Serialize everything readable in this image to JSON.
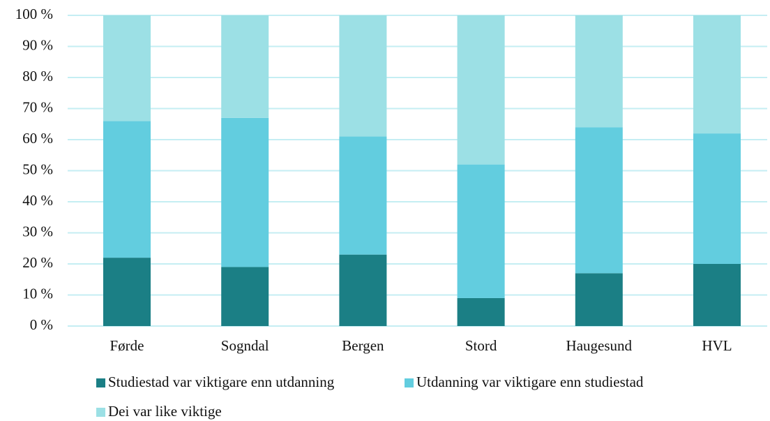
{
  "chart_data": {
    "type": "stacked_bar",
    "categories": [
      "Førde",
      "Sogndal",
      "Bergen",
      "Stord",
      "Haugesund",
      "HVL"
    ],
    "series": [
      {
        "name": "Studiestad var viktigare enn utdanning",
        "color": "#1b7f85",
        "values": [
          22,
          19,
          23,
          9,
          17,
          20
        ]
      },
      {
        "name": "Utdanning var viktigare enn studiestad",
        "color": "#62cddf",
        "values": [
          44,
          48,
          38,
          43,
          47,
          42
        ]
      },
      {
        "name": "Dei var like viktige",
        "color": "#9ce0e5",
        "values": [
          34,
          33,
          39,
          48,
          36,
          38
        ]
      }
    ],
    "ylim": [
      0,
      100
    ],
    "yticks": [
      {
        "value": 0,
        "label": "0 %"
      },
      {
        "value": 10,
        "label": "10 %"
      },
      {
        "value": 20,
        "label": "20 %"
      },
      {
        "value": 30,
        "label": "30 %"
      },
      {
        "value": 40,
        "label": "40 %"
      },
      {
        "value": 50,
        "label": "50 %"
      },
      {
        "value": 60,
        "label": "60 %"
      },
      {
        "value": 70,
        "label": "70 %"
      },
      {
        "value": 80,
        "label": "80 %"
      },
      {
        "value": 90,
        "label": "90 %"
      },
      {
        "value": 100,
        "label": "100 %"
      }
    ],
    "grid": true,
    "legend": "bottom"
  }
}
